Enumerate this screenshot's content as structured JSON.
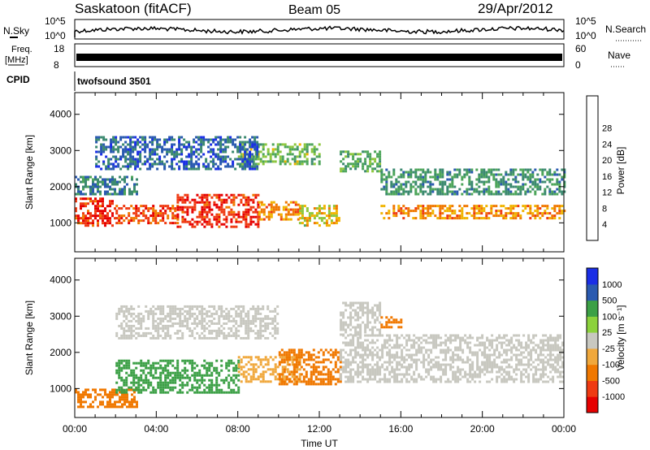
{
  "header": {
    "station": "Saskatoon (fitACF)",
    "beam": "Beam 05",
    "date": "29/Apr/2012"
  },
  "meta_panels": {
    "nsky": {
      "label": "N.Sky",
      "ticks": [
        "10^5",
        "10^0"
      ]
    },
    "nsearch": {
      "label": "N.Search",
      "ticks": [
        "10^5",
        "10^0"
      ]
    },
    "freq": {
      "label_top": "Freq.",
      "label_unit": "[MHz]",
      "ticks": [
        "18",
        "8"
      ]
    },
    "nave": {
      "label": "Nave",
      "ticks": [
        "60",
        "0"
      ]
    },
    "cpid": {
      "label": "CPID",
      "value": "twofsound 3501"
    }
  },
  "colors": {
    "power": [
      "#1a2ee6",
      "#2a5ab0",
      "#3c8a70",
      "#4da55a",
      "#8cc63c",
      "#f0b400",
      "#f07800",
      "#ef3a12",
      "#e60000"
    ],
    "velocity": [
      "#e60000",
      "#ef3a12",
      "#f07800",
      "#f0a83c",
      "#c8c8c0",
      "#8cd23c",
      "#3ca046",
      "#2a5ab0",
      "#1a2ee6"
    ]
  },
  "chart_data": [
    {
      "type": "heatmap",
      "name": "power",
      "xlabel": "",
      "ylabel": "Slant Range [km]",
      "ylim": [
        200,
        4600
      ],
      "yticks": [
        "1000",
        "2000",
        "3000",
        "4000"
      ],
      "colorbar": {
        "label": "Power [dB]",
        "range": [
          0,
          32
        ],
        "ticks": [
          "4",
          "8",
          "12",
          "16",
          "20",
          "24",
          "28"
        ]
      },
      "bands": [
        {
          "x": [
            0,
            2
          ],
          "y": [
            900,
            1700
          ],
          "level": 28
        },
        {
          "x": [
            0,
            3
          ],
          "y": [
            1800,
            2300
          ],
          "level": 8
        },
        {
          "x": [
            2,
            5
          ],
          "y": [
            1000,
            1500
          ],
          "level": 26
        },
        {
          "x": [
            5,
            9
          ],
          "y": [
            900,
            1800
          ],
          "level": 28
        },
        {
          "x": [
            9,
            11
          ],
          "y": [
            1100,
            1600
          ],
          "level": 22
        },
        {
          "x": [
            11,
            13
          ],
          "y": [
            900,
            1500
          ],
          "level": 18
        },
        {
          "x": [
            13,
            15
          ],
          "y": [
            2400,
            3000
          ],
          "level": 12
        },
        {
          "x": [
            15,
            24
          ],
          "y": [
            1100,
            1500
          ],
          "level": 22
        },
        {
          "x": [
            15,
            24
          ],
          "y": [
            1800,
            2500
          ],
          "level": 10
        },
        {
          "x": [
            8,
            12
          ],
          "y": [
            2600,
            3200
          ],
          "level": 14
        },
        {
          "x": [
            1,
            9
          ],
          "y": [
            2500,
            3400
          ],
          "level": 6
        }
      ]
    },
    {
      "type": "heatmap",
      "name": "velocity",
      "xlabel": "Time UT",
      "ylabel": "Slant Range [km]",
      "xlim": [
        0,
        24
      ],
      "xticks": [
        "00:00",
        "04:00",
        "08:00",
        "12:00",
        "16:00",
        "20:00",
        "00:00"
      ],
      "ylim": [
        200,
        4600
      ],
      "yticks": [
        "1000",
        "2000",
        "3000",
        "4000"
      ],
      "colorbar": {
        "label": "Velocity [m s⁻¹]",
        "ticks": [
          "1000",
          "500",
          "100",
          "25",
          "-25",
          "-100",
          "-500",
          "-1000"
        ]
      },
      "bands": [
        {
          "x": [
            0,
            3
          ],
          "y": [
            500,
            1000
          ],
          "level": "-500"
        },
        {
          "x": [
            2,
            8
          ],
          "y": [
            900,
            1800
          ],
          "level": "100"
        },
        {
          "x": [
            8,
            11
          ],
          "y": [
            1200,
            1900
          ],
          "level": "-100"
        },
        {
          "x": [
            10,
            13
          ],
          "y": [
            1100,
            2100
          ],
          "level": "-500"
        },
        {
          "x": [
            13,
            24
          ],
          "y": [
            1200,
            2500
          ],
          "level": "0"
        },
        {
          "x": [
            13,
            15
          ],
          "y": [
            2500,
            3400
          ],
          "level": "0"
        },
        {
          "x": [
            15,
            16
          ],
          "y": [
            2700,
            3000
          ],
          "level": "-500"
        },
        {
          "x": [
            2,
            10
          ],
          "y": [
            2400,
            3300
          ],
          "level": "0"
        }
      ]
    }
  ]
}
